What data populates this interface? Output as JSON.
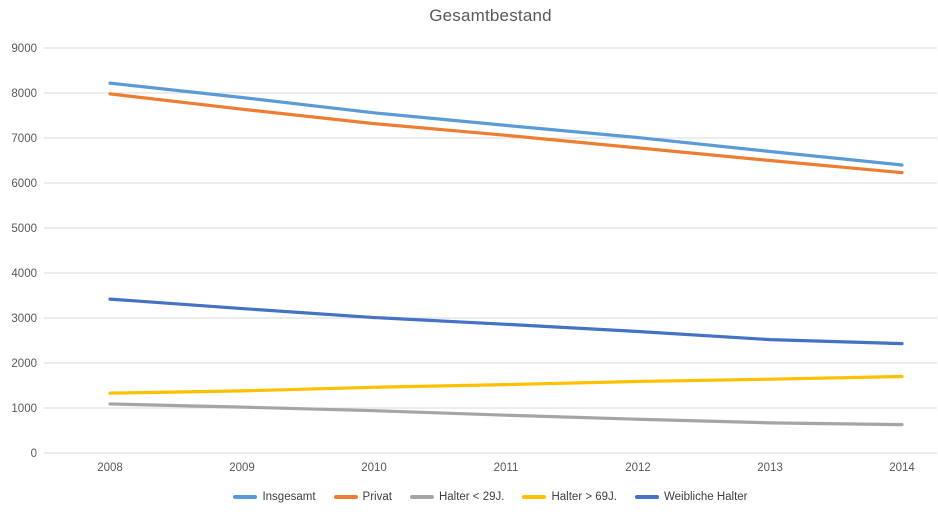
{
  "chart_data": {
    "type": "line",
    "title": "Gesamtbestand",
    "categories": [
      "2008",
      "2009",
      "2010",
      "2011",
      "2012",
      "2013",
      "2014"
    ],
    "series": [
      {
        "name": "Insgesamt",
        "color": "#5B9BD5",
        "values": [
          8220,
          7900,
          7560,
          7280,
          7010,
          6700,
          6400
        ]
      },
      {
        "name": "Privat",
        "color": "#ED7D31",
        "values": [
          7980,
          7640,
          7320,
          7060,
          6780,
          6500,
          6230
        ]
      },
      {
        "name": "Halter < 29J.",
        "color": "#A5A5A5",
        "values": [
          1090,
          1020,
          940,
          840,
          750,
          670,
          630
        ]
      },
      {
        "name": "Halter > 69J.",
        "color": "#FFC000",
        "values": [
          1330,
          1380,
          1460,
          1520,
          1590,
          1640,
          1700
        ]
      },
      {
        "name": "Weibliche Halter",
        "color": "#4472C4",
        "values": [
          3420,
          3210,
          3010,
          2860,
          2700,
          2520,
          2430
        ]
      }
    ],
    "ylim": [
      0,
      9000
    ],
    "ytick_step": 1000,
    "yticks": [
      "0",
      "1000",
      "2000",
      "3000",
      "4000",
      "5000",
      "6000",
      "7000",
      "8000",
      "9000"
    ],
    "grid": true,
    "legend_position": "bottom",
    "gridline_color": "#D9D9D9",
    "axis_label_color": "#595959",
    "title_color": "#595959"
  }
}
